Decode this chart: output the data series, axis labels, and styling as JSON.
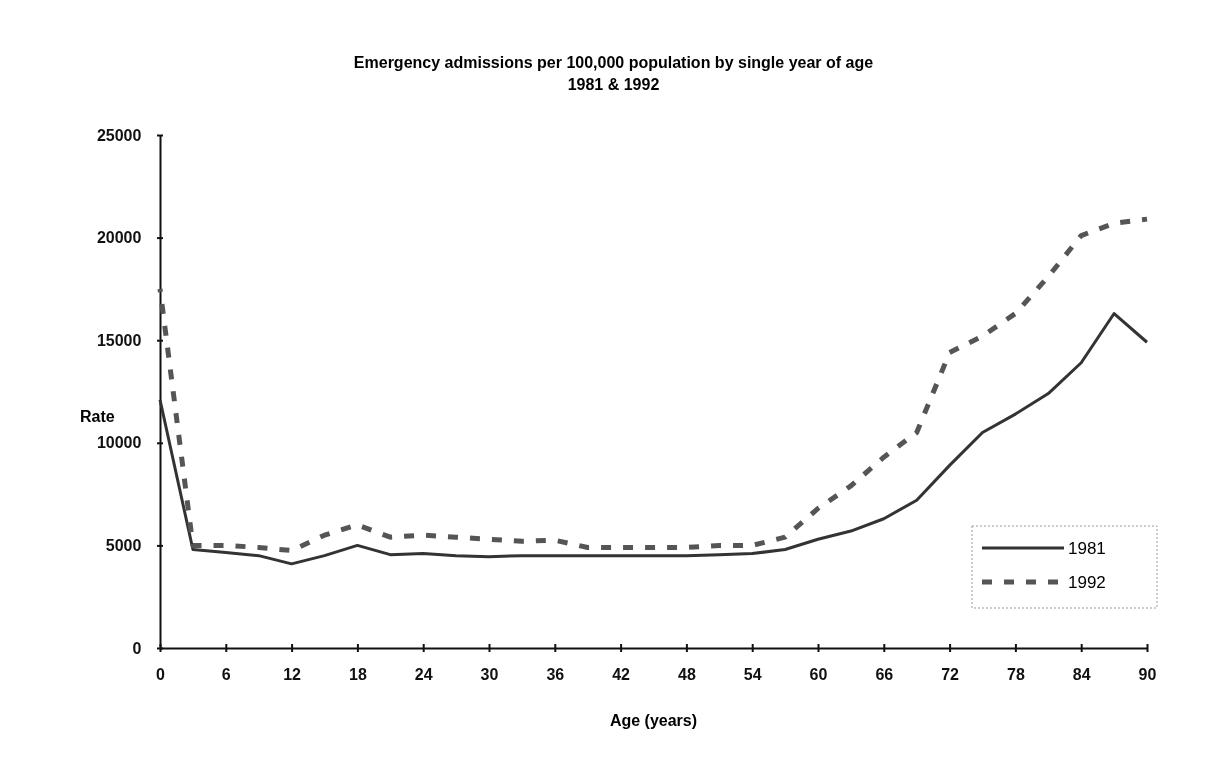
{
  "chart_data": {
    "type": "line",
    "title": "Emergency admissions per 100,000 population by single year of age",
    "subtitle": "1981 & 1992",
    "xlabel": "Age (years)",
    "ylabel": "Rate",
    "x": [
      0,
      3,
      6,
      9,
      12,
      15,
      18,
      21,
      24,
      27,
      30,
      33,
      36,
      39,
      42,
      45,
      48,
      51,
      54,
      57,
      60,
      63,
      66,
      69,
      72,
      75,
      78,
      81,
      84,
      87,
      90
    ],
    "xlim": [
      0,
      90
    ],
    "xticks": [
      0,
      6,
      12,
      18,
      24,
      30,
      36,
      42,
      48,
      54,
      60,
      66,
      72,
      78,
      84,
      90
    ],
    "ylim": [
      0,
      25000
    ],
    "yticks": [
      0,
      5000,
      10000,
      15000,
      20000,
      25000
    ],
    "grid": false,
    "legend": "bottom right",
    "marker": "none",
    "series": [
      {
        "name": "1981",
        "color": "#333333",
        "line_style": "solid",
        "values": [
          12100,
          4800,
          4650,
          4500,
          4100,
          4500,
          5000,
          4550,
          4600,
          4500,
          4450,
          4500,
          4500,
          4500,
          4500,
          4500,
          4500,
          4550,
          4600,
          4800,
          5300,
          5700,
          6300,
          7200,
          8900,
          10500,
          11400,
          12400,
          13900,
          16300,
          14900
        ]
      },
      {
        "name": "1992",
        "color": "#555555",
        "line_style": "dashed",
        "values": [
          17500,
          5000,
          5000,
          4900,
          4750,
          5500,
          6000,
          5400,
          5500,
          5400,
          5300,
          5200,
          5250,
          4900,
          4900,
          4900,
          4900,
          5000,
          5000,
          5400,
          6800,
          7900,
          9300,
          10500,
          14400,
          15200,
          16300,
          18100,
          20100,
          20700,
          20900
        ]
      }
    ]
  }
}
